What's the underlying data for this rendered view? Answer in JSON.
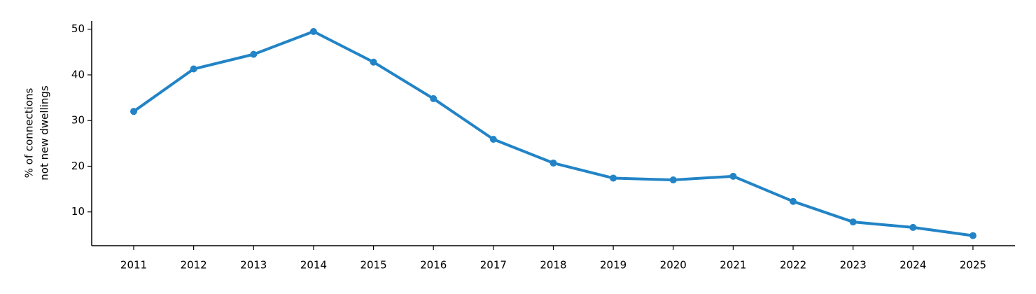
{
  "chart_data": {
    "type": "line",
    "ylabel": [
      "% of connections",
      "not new dwellings"
    ],
    "categories": [
      "2011",
      "2012",
      "2013",
      "2014",
      "2015",
      "2016",
      "2017",
      "2018",
      "2019",
      "2020",
      "2021",
      "2022",
      "2023",
      "2024",
      "2025"
    ],
    "values": [
      32.0,
      41.3,
      44.5,
      49.5,
      42.8,
      34.8,
      25.9,
      20.7,
      17.4,
      17.0,
      17.8,
      12.3,
      7.8,
      6.6,
      4.8
    ],
    "color": "#2284c6",
    "ylim": [
      2.6,
      51.8
    ],
    "yticks": [
      10,
      20,
      30,
      40,
      50
    ],
    "grid": false
  }
}
